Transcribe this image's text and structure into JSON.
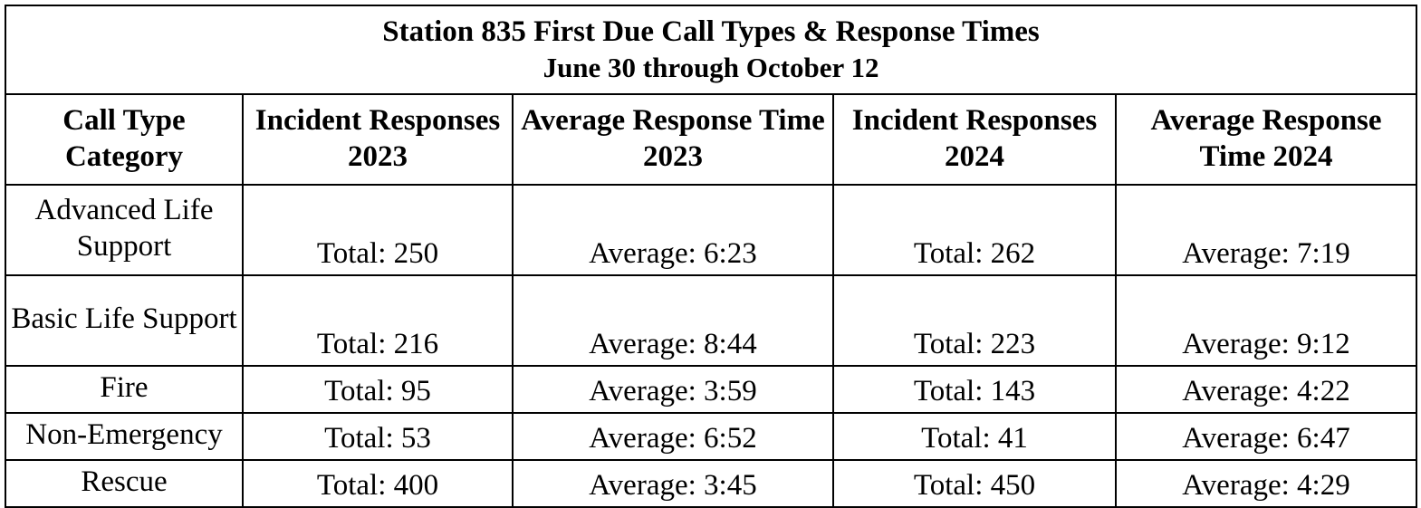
{
  "title": "Station 835 First Due Call Types & Response Times",
  "subtitle": "June 30 through October 12",
  "columns": [
    "Call Type Category",
    "Incident Responses 2023",
    "Average Response Time 2023",
    "Incident Responses 2024",
    "Average Response Time 2024"
  ],
  "rows": [
    {
      "category": "Advanced Life Support",
      "inc2023": "Total: 250",
      "avg2023": "Average: 6:23",
      "inc2024": "Total: 262",
      "avg2024": "Average: 7:19"
    },
    {
      "category": "Basic Life Support",
      "inc2023": "Total: 216",
      "avg2023": "Average: 8:44",
      "inc2024": "Total: 223",
      "avg2024": "Average: 9:12"
    },
    {
      "category": "Fire",
      "inc2023": "Total: 95",
      "avg2023": "Average: 3:59",
      "inc2024": "Total: 143",
      "avg2024": "Average: 4:22"
    },
    {
      "category": "Non-Emergency",
      "inc2023": "Total: 53",
      "avg2023": "Average: 6:52",
      "inc2024": "Total: 41",
      "avg2024": "Average: 6:47"
    },
    {
      "category": "Rescue",
      "inc2023": "Total: 400",
      "avg2023": "Average: 3:45",
      "inc2024": "Total: 450",
      "avg2024": "Average: 4:29"
    }
  ]
}
